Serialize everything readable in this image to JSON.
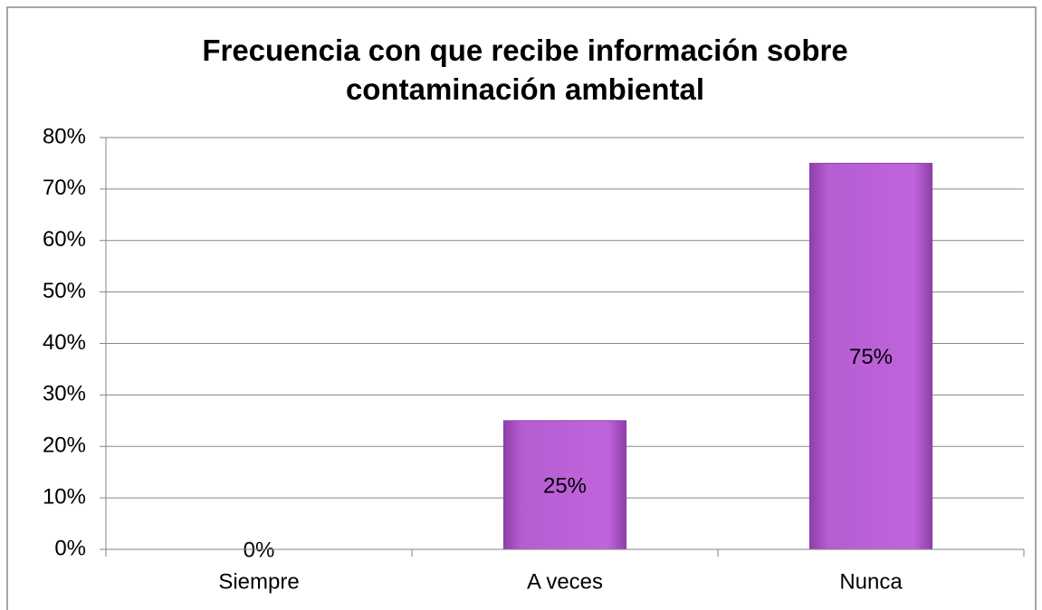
{
  "chart_data": {
    "type": "bar",
    "title": "Frecuencia con que recibe información sobre contaminación ambiental",
    "categories": [
      "Siempre",
      "A veces",
      "Nunca"
    ],
    "values": [
      0,
      25,
      75
    ],
    "value_labels": [
      "0%",
      "25%",
      "75%"
    ],
    "color": "#b65dd2",
    "ylim": [
      0,
      80
    ],
    "yticks": [
      {
        "value": 0,
        "label": "0%"
      },
      {
        "value": 10,
        "label": "10%"
      },
      {
        "value": 20,
        "label": "20%"
      },
      {
        "value": 30,
        "label": "30%"
      },
      {
        "value": 40,
        "label": "40%"
      },
      {
        "value": 50,
        "label": "50%"
      },
      {
        "value": 60,
        "label": "60%"
      },
      {
        "value": 70,
        "label": "70%"
      },
      {
        "value": 80,
        "label": "80%"
      }
    ],
    "grid": true
  }
}
